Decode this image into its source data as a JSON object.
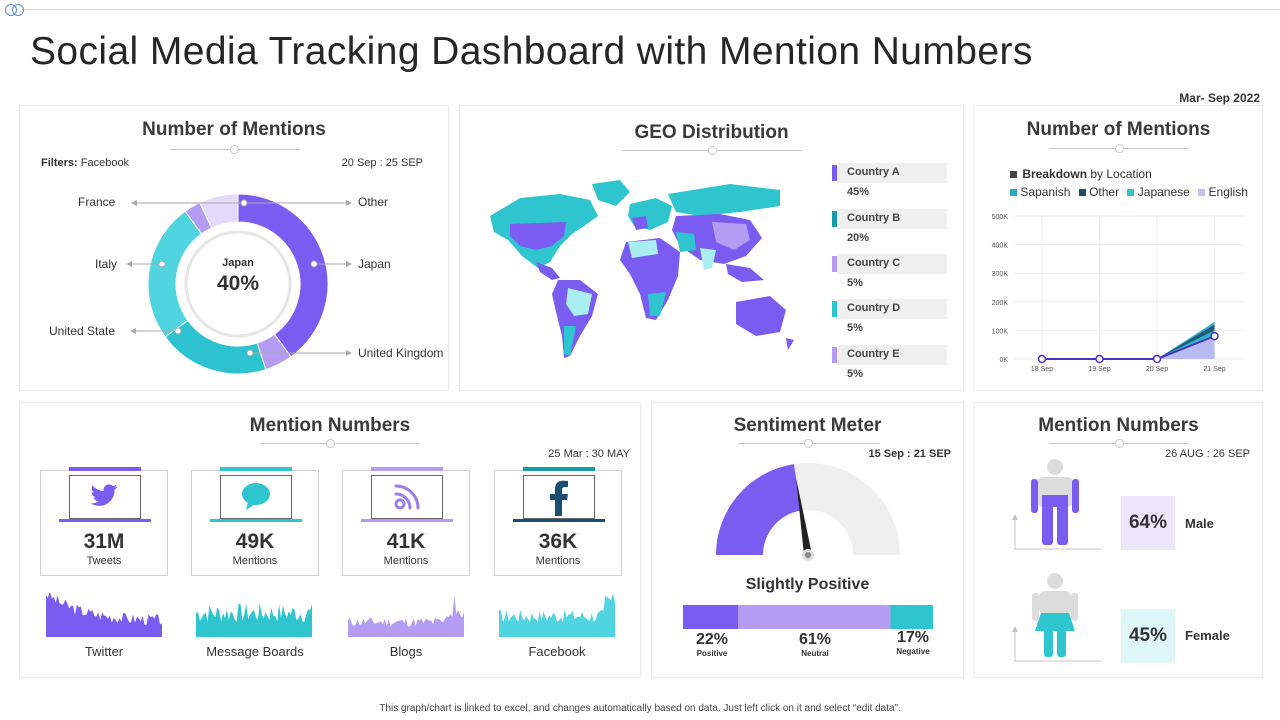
{
  "page": {
    "title": "Social Media Tracking Dashboard with Mention Numbers",
    "period": "Mar- Sep 2022",
    "footer": "This graph/chart is linked to excel, and changes automatically based on data. Just left click on it and select “edit data”."
  },
  "colors": {
    "purple": "#7b5cf0",
    "light_purple": "#b39cf2",
    "teal": "#2ec5cf",
    "dark_teal": "#1a9aa6",
    "navy": "#1b4f72",
    "grey": "#eeeeee"
  },
  "mentions_donut": {
    "title": "Number of Mentions",
    "filters_label": "Filters:",
    "filters_value": "Facebook",
    "date_range": "20 Sep : 25 SEP",
    "center_label": "Japan",
    "center_value": "40%",
    "labels": {
      "france": "France",
      "other": "Other",
      "italy": "Italy",
      "japan": "Japan",
      "united_state": "United State",
      "united_kingdom": "United Kingdom"
    }
  },
  "chart_data": [
    {
      "type": "pie",
      "title": "Number of Mentions",
      "categories": [
        "Japan",
        "United Kingdom",
        "United State",
        "Italy",
        "France",
        "Other"
      ],
      "values": [
        40,
        5,
        20,
        25,
        3,
        7
      ]
    },
    {
      "type": "line",
      "title": "Number of Mentions",
      "subtitle": "Breakdown by Location",
      "categories": [
        "18 Sep",
        "19 Sep",
        "20 Sep",
        "21 Sep"
      ],
      "ylim": [
        0,
        500000
      ],
      "yticks": [
        "0K",
        "100K",
        "200K",
        "300K",
        "400K",
        "500K"
      ],
      "series": [
        {
          "name": "English",
          "values": [
            0,
            0,
            0,
            80000
          ]
        },
        {
          "name": "Japanese",
          "values": [
            0,
            0,
            0,
            100000
          ]
        },
        {
          "name": "Other",
          "values": [
            0,
            0,
            0,
            120000
          ]
        },
        {
          "name": "Sapanish",
          "values": [
            0,
            0,
            0,
            130000
          ]
        }
      ]
    },
    {
      "type": "bar",
      "title": "Sentiment Meter",
      "categories": [
        "Positive",
        "Neutral",
        "Negative"
      ],
      "values": [
        22,
        61,
        17
      ]
    }
  ],
  "geo": {
    "title": "GEO Distribution",
    "countries": [
      {
        "name": "Country A",
        "value": "45%"
      },
      {
        "name": "Country B",
        "value": "20%"
      },
      {
        "name": "Country C",
        "value": "5%"
      },
      {
        "name": "Country D",
        "value": "5%"
      },
      {
        "name": "Country E",
        "value": "5%"
      }
    ]
  },
  "location_chart": {
    "title": "Number of Mentions",
    "breakdown_bold": "Breakdown",
    "breakdown_rest": "by Location",
    "legend": [
      "Sapanish",
      "Other",
      "Japanese",
      "English"
    ]
  },
  "mention_numbers": {
    "title": "Mention Numbers",
    "date_range": "25 Mar : 30 MAY",
    "stats": [
      {
        "value": "31M",
        "sub": "Tweets",
        "channel": "Twitter",
        "icon": "twitter-icon"
      },
      {
        "value": "49K",
        "sub": "Mentions",
        "channel": "Message Boards",
        "icon": "chat-bubble-icon"
      },
      {
        "value": "41K",
        "sub": "Mentions",
        "channel": "Blogs",
        "icon": "rss-icon"
      },
      {
        "value": "36K",
        "sub": "Mentions",
        "channel": "Facebook",
        "icon": "facebook-icon"
      }
    ]
  },
  "sentiment": {
    "title": "Sentiment Meter",
    "date_range": "15 Sep : 21 SEP",
    "verdict": "Slightly Positive",
    "items": [
      {
        "value": "22%",
        "label": "Positive"
      },
      {
        "value": "61%",
        "label": "Neutral"
      },
      {
        "value": "17%",
        "label": "Negative"
      }
    ]
  },
  "gender": {
    "title": "Mention Numbers",
    "date_range": "26 AUG : 26 SEP",
    "male_value": "64%",
    "male_label": "Male",
    "female_value": "45%",
    "female_label": "Female"
  }
}
